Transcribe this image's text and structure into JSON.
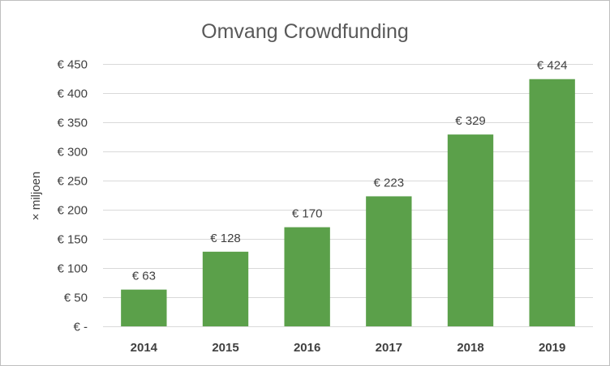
{
  "chart_data": {
    "type": "bar",
    "title": "Omvang Crowdfunding",
    "xlabel": "",
    "ylabel": "× miljoen",
    "categories": [
      "2014",
      "2015",
      "2016",
      "2017",
      "2018",
      "2019"
    ],
    "values": [
      63,
      128,
      170,
      223,
      329,
      424
    ],
    "data_labels": [
      "€ 63",
      "€ 128",
      "€ 170",
      "€ 223",
      "€ 329",
      "€ 424"
    ],
    "ylim": [
      0,
      450
    ],
    "yticks": [
      0,
      50,
      100,
      150,
      200,
      250,
      300,
      350,
      400,
      450
    ],
    "ytick_labels": [
      "€ -",
      "€ 50",
      "€ 100",
      "€ 150",
      "€ 200",
      "€ 250",
      "€ 300",
      "€ 350",
      "€ 400",
      "€ 450"
    ],
    "grid": true,
    "legend": "none",
    "colors": {
      "bar": "#70ad47",
      "bar_fill": "#5ba04a",
      "grid": "#d9d9d9",
      "text": "#404040",
      "title": "#595959"
    }
  }
}
